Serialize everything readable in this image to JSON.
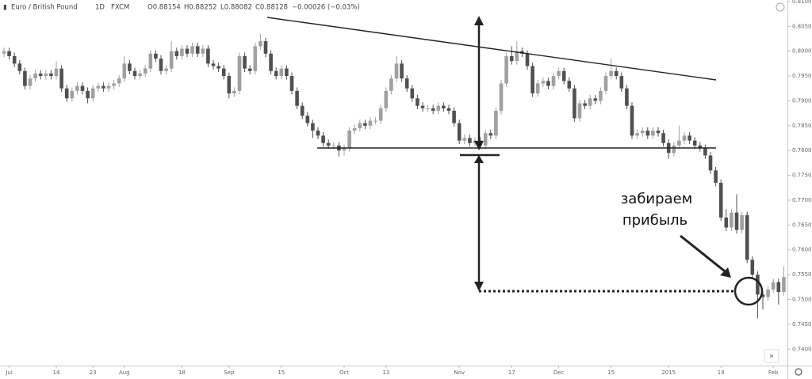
{
  "chart_data": {
    "type": "candlestick",
    "header": {
      "symbol": "Euro / British Pound",
      "interval": "1D",
      "source": "FXCM",
      "open": "O0.88154",
      "high": "H0.88252",
      "low": "L0.88082",
      "close": "C0.88128",
      "change": "−0.00026 (−0.03%)"
    },
    "annotation": [
      "забираем",
      "прибыль"
    ],
    "up_color": "#a0a0a0",
    "down_color": "#505050",
    "grid": false,
    "categories": [
      null,
      "Jul",
      null,
      null,
      null,
      null,
      null,
      null,
      null,
      null,
      "14",
      null,
      null,
      null,
      null,
      null,
      null,
      "23",
      null,
      null,
      null,
      null,
      null,
      "Aug",
      null,
      null,
      null,
      null,
      null,
      null,
      null,
      null,
      null,
      null,
      "18",
      null,
      null,
      null,
      null,
      null,
      null,
      null,
      null,
      "Sep",
      null,
      null,
      null,
      null,
      null,
      null,
      null,
      null,
      null,
      "15",
      null,
      null,
      null,
      null,
      null,
      null,
      null,
      null,
      null,
      null,
      null,
      "Oct",
      null,
      null,
      null,
      null,
      null,
      null,
      null,
      "13",
      null,
      null,
      null,
      null,
      null,
      null,
      null,
      null,
      null,
      null,
      null,
      null,
      null,
      "Nov",
      null,
      null,
      null,
      null,
      null,
      null,
      null,
      null,
      null,
      "17",
      null,
      null,
      null,
      null,
      null,
      null,
      null,
      null,
      "Dec",
      null,
      null,
      null,
      null,
      null,
      null,
      null,
      null,
      null,
      "15",
      null,
      null,
      null,
      null,
      null,
      null,
      null,
      null,
      null,
      null,
      "2015",
      null,
      null,
      null,
      null,
      null,
      null,
      null,
      null,
      null,
      "19",
      null,
      null,
      null,
      null,
      null,
      null,
      null,
      null,
      null,
      "Feb",
      null,
      null
    ],
    "open": [
      0.7995,
      0.8,
      0.799,
      0.7975,
      0.796,
      0.793,
      0.7945,
      0.7955,
      0.795,
      0.7955,
      0.795,
      0.7965,
      0.7925,
      0.7905,
      0.792,
      0.793,
      0.792,
      0.7905,
      0.7925,
      0.793,
      0.7925,
      0.793,
      0.7935,
      0.7945,
      0.7975,
      0.796,
      0.795,
      0.7955,
      0.7965,
      0.7995,
      0.7985,
      0.796,
      0.7965,
      0.8,
      0.799,
      0.8005,
      0.7995,
      0.801,
      0.7995,
      0.8005,
      0.7975,
      0.797,
      0.7965,
      0.795,
      0.7915,
      0.792,
      0.799,
      0.7965,
      0.796,
      0.801,
      0.802,
      0.7995,
      0.796,
      0.795,
      0.7965,
      0.795,
      0.792,
      0.789,
      0.787,
      0.7855,
      0.784,
      0.783,
      0.7815,
      0.781,
      0.781,
      0.78,
      0.7805,
      0.784,
      0.7845,
      0.7855,
      0.785,
      0.786,
      0.786,
      0.7885,
      0.792,
      0.7945,
      0.7975,
      0.7945,
      0.7925,
      0.7905,
      0.789,
      0.7885,
      0.7885,
      0.788,
      0.789,
      0.7885,
      0.788,
      0.7855,
      0.782,
      0.7825,
      0.7815,
      0.782,
      0.781,
      0.7835,
      0.783,
      0.788,
      0.7935,
      0.799,
      0.798,
      0.8,
      0.7995,
      0.797,
      0.7915,
      0.7935,
      0.794,
      0.793,
      0.795,
      0.796,
      0.794,
      0.7925,
      0.7865,
      0.7895,
      0.789,
      0.7905,
      0.79,
      0.792,
      0.795,
      0.796,
      0.795,
      0.7925,
      0.789,
      0.783,
      0.7835,
      0.784,
      0.783,
      0.784,
      0.7835,
      0.7815,
      0.7795,
      0.781,
      0.782,
      0.783,
      0.782,
      0.781,
      0.7805,
      0.779,
      0.776,
      0.7735,
      0.7665,
      0.7645,
      0.7675,
      0.764,
      0.767,
      0.758,
      0.755,
      0.751,
      0.7505,
      0.752,
      0.7535,
      0.7515
    ],
    "high": [
      0.8007,
      0.8007,
      0.7997,
      0.7982,
      0.7967,
      0.7952,
      0.7962,
      0.7962,
      0.7962,
      0.7962,
      0.798,
      0.7972,
      0.7932,
      0.7927,
      0.7937,
      0.7937,
      0.7927,
      0.7932,
      0.7937,
      0.7937,
      0.7937,
      0.7942,
      0.7952,
      0.799,
      0.7982,
      0.7967,
      0.7962,
      0.7972,
      0.8002,
      0.8002,
      0.7992,
      0.7972,
      0.802,
      0.8007,
      0.8012,
      0.8012,
      0.8017,
      0.8017,
      0.8012,
      0.8012,
      0.7982,
      0.7977,
      0.7972,
      0.7957,
      0.7927,
      0.7997,
      0.7997,
      0.7972,
      0.8017,
      0.8035,
      0.8027,
      0.8002,
      0.7967,
      0.7972,
      0.7972,
      0.7957,
      0.7927,
      0.7897,
      0.7877,
      0.7862,
      0.7847,
      0.7837,
      0.7822,
      0.7817,
      0.7817,
      0.7812,
      0.7847,
      0.7852,
      0.7862,
      0.7862,
      0.7867,
      0.7867,
      0.7892,
      0.7927,
      0.7952,
      0.799,
      0.7982,
      0.7952,
      0.7932,
      0.7912,
      0.7897,
      0.7892,
      0.7892,
      0.7897,
      0.7897,
      0.7892,
      0.7887,
      0.7862,
      0.7832,
      0.7832,
      0.7827,
      0.7827,
      0.7842,
      0.7842,
      0.7887,
      0.7942,
      0.7997,
      0.801,
      0.802,
      0.8007,
      0.8002,
      0.7977,
      0.7942,
      0.7947,
      0.7947,
      0.7957,
      0.7967,
      0.7967,
      0.7947,
      0.7932,
      0.7902,
      0.7902,
      0.7912,
      0.7912,
      0.7927,
      0.7957,
      0.7985,
      0.7967,
      0.7957,
      0.7932,
      0.7897,
      0.7842,
      0.7847,
      0.7847,
      0.7847,
      0.7847,
      0.7842,
      0.7822,
      0.7817,
      0.785,
      0.7837,
      0.7837,
      0.7827,
      0.7817,
      0.7812,
      0.7797,
      0.7767,
      0.7742,
      0.7682,
      0.7682,
      0.7712,
      0.7677,
      0.7677,
      0.7587,
      0.7557,
      0.7517,
      0.7527,
      0.7542,
      0.7542,
      0.7567
    ],
    "low": [
      0.7988,
      0.7983,
      0.7968,
      0.7953,
      0.7923,
      0.7923,
      0.7938,
      0.7943,
      0.7943,
      0.7943,
      0.7943,
      0.7918,
      0.7898,
      0.7898,
      0.7913,
      0.7913,
      0.7895,
      0.7898,
      0.7918,
      0.7918,
      0.7918,
      0.7923,
      0.7928,
      0.7938,
      0.7953,
      0.7943,
      0.7943,
      0.7948,
      0.7958,
      0.7978,
      0.7953,
      0.7953,
      0.7958,
      0.7983,
      0.7983,
      0.7988,
      0.7988,
      0.7988,
      0.7988,
      0.7968,
      0.7963,
      0.7958,
      0.7943,
      0.7905,
      0.7908,
      0.7913,
      0.7958,
      0.7953,
      0.7953,
      0.8003,
      0.7988,
      0.7953,
      0.7943,
      0.7943,
      0.7943,
      0.7913,
      0.7883,
      0.7863,
      0.7848,
      0.7825,
      0.7823,
      0.7808,
      0.7803,
      0.7803,
      0.7788,
      0.779,
      0.7798,
      0.7833,
      0.7838,
      0.7843,
      0.7843,
      0.7853,
      0.7853,
      0.7878,
      0.7913,
      0.7938,
      0.7938,
      0.7918,
      0.7898,
      0.7883,
      0.7878,
      0.7878,
      0.7873,
      0.7873,
      0.7878,
      0.7873,
      0.7848,
      0.7813,
      0.7813,
      0.7808,
      0.7808,
      0.7803,
      0.7803,
      0.7823,
      0.7823,
      0.7873,
      0.7928,
      0.7973,
      0.7973,
      0.7988,
      0.7963,
      0.7908,
      0.7908,
      0.7928,
      0.7923,
      0.7923,
      0.7943,
      0.7933,
      0.7918,
      0.7858,
      0.7858,
      0.7883,
      0.7883,
      0.7893,
      0.7893,
      0.7913,
      0.7943,
      0.7943,
      0.7918,
      0.7883,
      0.7823,
      0.7823,
      0.7828,
      0.7823,
      0.7823,
      0.7828,
      0.7808,
      0.7783,
      0.7788,
      0.7803,
      0.7813,
      0.7813,
      0.7803,
      0.7798,
      0.7783,
      0.7753,
      0.7728,
      0.7658,
      0.7638,
      0.7638,
      0.7633,
      0.7633,
      0.7573,
      0.7543,
      0.7462,
      0.748,
      0.7498,
      0.7513,
      0.749,
      0.7508
    ],
    "close": [
      0.8,
      0.799,
      0.7975,
      0.796,
      0.793,
      0.7945,
      0.7955,
      0.795,
      0.7955,
      0.795,
      0.7965,
      0.7925,
      0.7905,
      0.792,
      0.793,
      0.792,
      0.7905,
      0.7925,
      0.793,
      0.7925,
      0.793,
      0.7935,
      0.7945,
      0.7975,
      0.796,
      0.795,
      0.7955,
      0.7965,
      0.7995,
      0.7985,
      0.796,
      0.7965,
      0.8,
      0.799,
      0.8005,
      0.7995,
      0.801,
      0.7995,
      0.8005,
      0.7975,
      0.797,
      0.7965,
      0.795,
      0.7915,
      0.792,
      0.799,
      0.7965,
      0.796,
      0.801,
      0.802,
      0.7995,
      0.796,
      0.795,
      0.7965,
      0.795,
      0.792,
      0.789,
      0.787,
      0.7855,
      0.784,
      0.783,
      0.7815,
      0.781,
      0.781,
      0.78,
      0.7805,
      0.784,
      0.7845,
      0.7855,
      0.785,
      0.786,
      0.786,
      0.7885,
      0.792,
      0.7945,
      0.7975,
      0.7945,
      0.7925,
      0.7905,
      0.789,
      0.7885,
      0.7885,
      0.788,
      0.789,
      0.7885,
      0.788,
      0.7855,
      0.782,
      0.7825,
      0.7815,
      0.782,
      0.781,
      0.7835,
      0.783,
      0.788,
      0.7935,
      0.799,
      0.798,
      0.8,
      0.7995,
      0.797,
      0.7915,
      0.7935,
      0.794,
      0.793,
      0.795,
      0.796,
      0.794,
      0.7925,
      0.7865,
      0.7895,
      0.789,
      0.7905,
      0.79,
      0.792,
      0.795,
      0.796,
      0.795,
      0.7925,
      0.789,
      0.783,
      0.7835,
      0.784,
      0.783,
      0.784,
      0.7835,
      0.7815,
      0.7795,
      0.781,
      0.782,
      0.783,
      0.782,
      0.781,
      0.7805,
      0.779,
      0.776,
      0.7735,
      0.7665,
      0.7645,
      0.7675,
      0.764,
      0.767,
      0.758,
      0.755,
      0.751,
      0.7505,
      0.752,
      0.7535,
      0.7515,
      0.7545
    ],
    "ylim": [
      0.7367,
      0.8103
    ],
    "yticks": [
      {
        "value": 0.74,
        "label": "0.74000"
      },
      {
        "value": 0.745,
        "label": "0.74500"
      },
      {
        "value": 0.75,
        "label": "0.75000"
      },
      {
        "value": 0.755,
        "label": "0.75500"
      },
      {
        "value": 0.76,
        "label": "0.76000"
      },
      {
        "value": 0.765,
        "label": "0.76500"
      },
      {
        "value": 0.77,
        "label": "0.77000"
      },
      {
        "value": 0.775,
        "label": "0.77500"
      },
      {
        "value": 0.78,
        "label": "0.78000"
      },
      {
        "value": 0.785,
        "label": "0.78500"
      },
      {
        "value": 0.79,
        "label": "0.79000"
      },
      {
        "value": 0.795,
        "label": "0.79500"
      },
      {
        "value": 0.8,
        "label": "0.80000"
      },
      {
        "value": 0.805,
        "label": "0.80500"
      },
      {
        "value": 0.81,
        "label": "0.81000"
      }
    ]
  }
}
